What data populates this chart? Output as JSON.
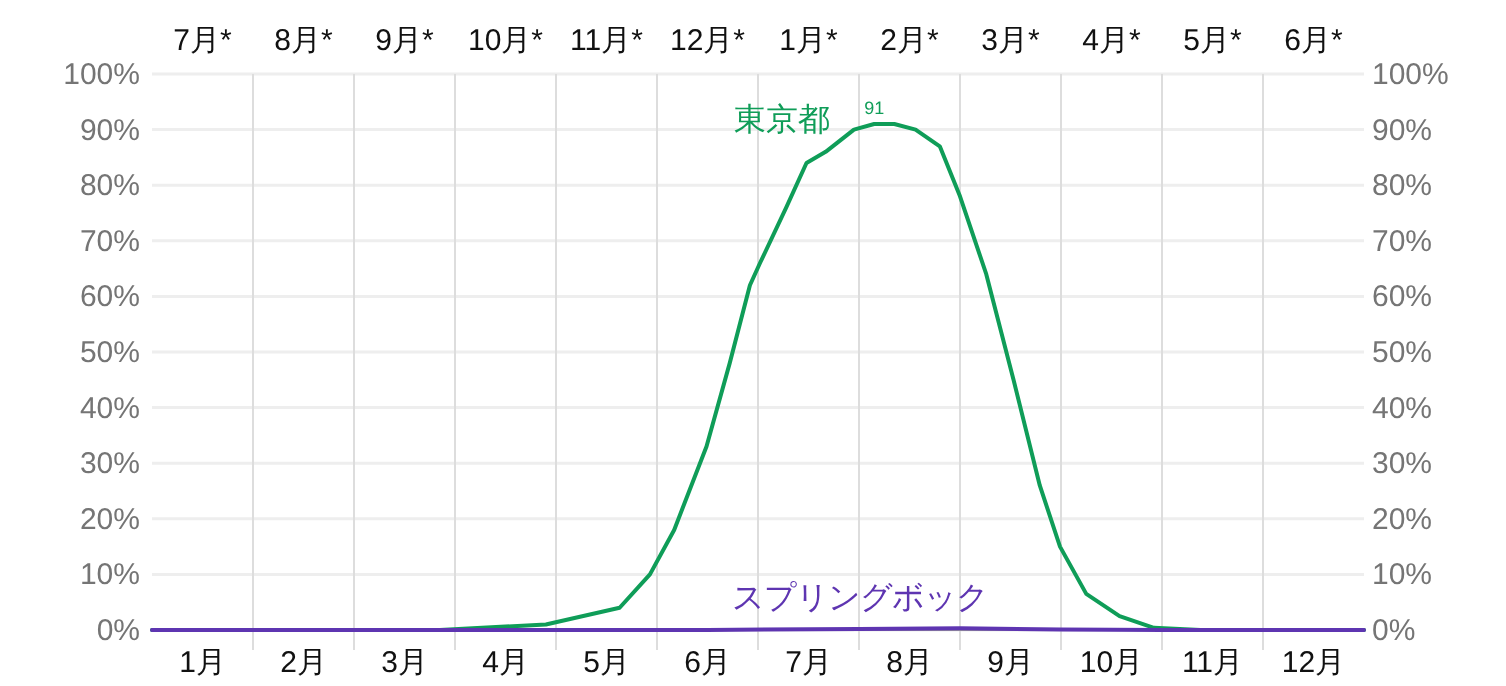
{
  "chart_data": {
    "type": "line",
    "x": [
      0.5,
      3.35,
      4.4,
      5.13,
      5.43,
      5.67,
      5.99,
      6.22,
      6.42,
      6.52,
      6.78,
      6.98,
      7.17,
      7.45,
      7.65,
      7.85,
      8.06,
      8.3,
      8.5,
      8.76,
      9.03,
      9.29,
      9.49,
      9.75,
      10.08,
      10.42,
      10.88,
      12.5
    ],
    "series": [
      {
        "name": "東京都",
        "color": "#0f9d58",
        "values": [
          0,
          0,
          1,
          4,
          10,
          18,
          33,
          48,
          62,
          66,
          76,
          84,
          86,
          90,
          91,
          91,
          90,
          87,
          78,
          64,
          45,
          26,
          15,
          6.5,
          2.5,
          0.4,
          0,
          0
        ]
      },
      {
        "name": "スプリングボック",
        "color": "#5e35b1",
        "x": [
          0.5,
          6,
          7.5,
          8.5,
          9.5,
          10.5,
          12.5
        ],
        "values": [
          0,
          0,
          0.2,
          0.3,
          0.1,
          0,
          0
        ]
      }
    ],
    "annotations": [
      {
        "text": "91",
        "x": 7.65,
        "y": 91
      },
      "7月*",
      "8月*",
      "9月*",
      "10月*",
      "11月*",
      "12月*",
      "1月*",
      "2月*",
      "3月*",
      "4月*",
      "5月*",
      "6月*"
    ],
    "xlim": [
      0.5,
      12.5
    ],
    "xticks": [
      {
        "value": 1,
        "label": "1月"
      },
      {
        "value": 1.5,
        "label": null
      },
      {
        "value": 2,
        "label": "2月"
      },
      {
        "value": 2.5,
        "label": null
      },
      {
        "value": 3,
        "label": "3月"
      },
      {
        "value": 3.5,
        "label": null
      },
      {
        "value": 4,
        "label": "4月"
      },
      {
        "value": 4.5,
        "label": null
      },
      {
        "value": 5,
        "label": "5月"
      },
      {
        "value": 5.5,
        "label": null
      },
      {
        "value": 6,
        "label": "6月"
      },
      {
        "value": 6.5,
        "label": null
      },
      {
        "value": 7,
        "label": "7月"
      },
      {
        "value": 7.5,
        "label": null
      },
      {
        "value": 8,
        "label": "8月"
      },
      {
        "value": 8.5,
        "label": null
      },
      {
        "value": 9,
        "label": "9月"
      },
      {
        "value": 9.5,
        "label": null
      },
      {
        "value": 10,
        "label": "10月"
      },
      {
        "value": 10.5,
        "label": null
      },
      {
        "value": 11,
        "label": "11月"
      },
      {
        "value": 11.5,
        "label": null
      },
      {
        "value": 12,
        "label": "12月"
      }
    ],
    "ylim": [
      0,
      100
    ],
    "yticks": [
      {
        "value": 0,
        "label": "0%"
      },
      {
        "value": 10,
        "label": "10%"
      },
      {
        "value": 20,
        "label": "20%"
      },
      {
        "value": 30,
        "label": "30%"
      },
      {
        "value": 40,
        "label": "40%"
      },
      {
        "value": 50,
        "label": "50%"
      },
      {
        "value": 60,
        "label": "60%"
      },
      {
        "value": 70,
        "label": "70%"
      },
      {
        "value": 80,
        "label": "80%"
      },
      {
        "value": 90,
        "label": "90%"
      },
      {
        "value": 100,
        "label": "100%"
      }
    ],
    "y2lim": [
      0,
      100
    ],
    "y2ticks": [
      {
        "value": 0,
        "label": "0%"
      },
      {
        "value": 10,
        "label": "10%"
      },
      {
        "value": 20,
        "label": "20%"
      },
      {
        "value": 30,
        "label": "30%"
      },
      {
        "value": 40,
        "label": "40%"
      },
      {
        "value": 50,
        "label": "50%"
      },
      {
        "value": 60,
        "label": "60%"
      },
      {
        "value": 70,
        "label": "70%"
      },
      {
        "value": 80,
        "label": "80%"
      },
      {
        "value": 90,
        "label": "90%"
      },
      {
        "value": 100,
        "label": "100%"
      }
    ],
    "grid": true,
    "legend": false,
    "marker": "none",
    "line_style": "solid"
  }
}
